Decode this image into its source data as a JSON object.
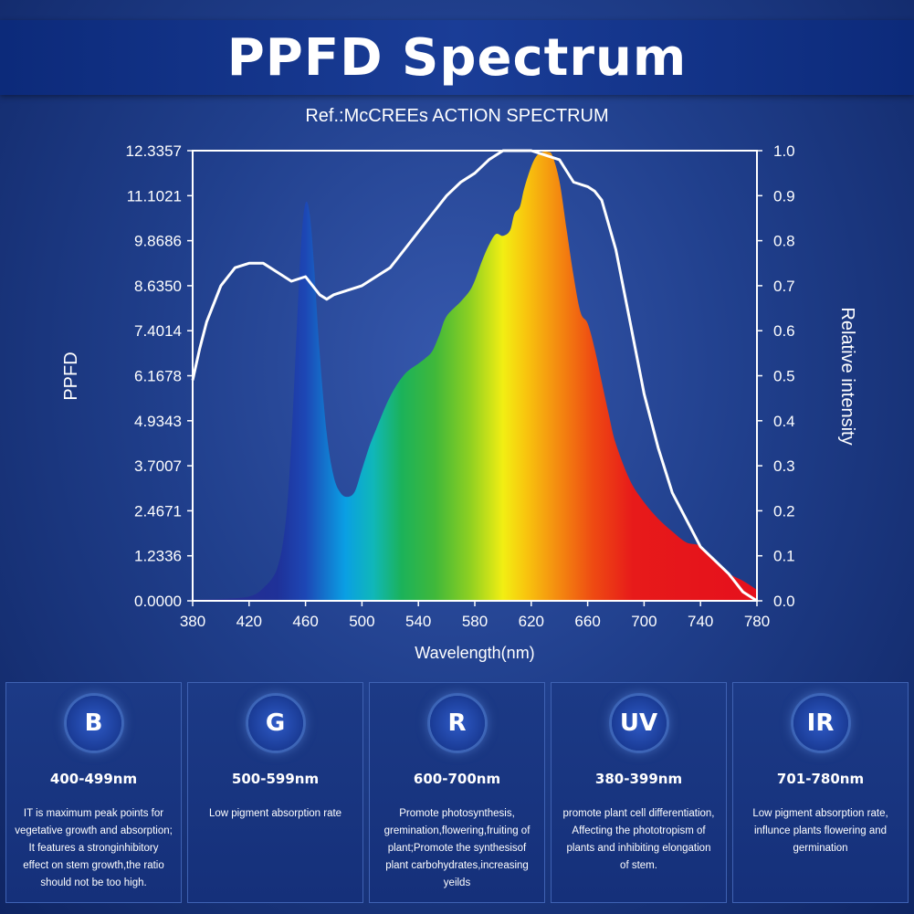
{
  "header": {
    "title": "PPFD Spectrum",
    "subtitle": "Ref.:McCREEs ACTION SPECTRUM"
  },
  "chart_data": {
    "type": "area",
    "xlabel": "Wavelength(nm)",
    "ylabel": "PPFD",
    "y2label": "Relative intensity",
    "xlim": [
      380,
      780
    ],
    "ylim": [
      0,
      12.3357
    ],
    "y2lim": [
      0,
      1.0
    ],
    "x_ticks": [
      "380",
      "420",
      "460",
      "500",
      "540",
      "580",
      "620",
      "660",
      "700",
      "740",
      "780"
    ],
    "y_ticks": [
      "0.0000",
      "1.2336",
      "2.4671",
      "3.7007",
      "4.9343",
      "6.1678",
      "7.4014",
      "8.6350",
      "9.8686",
      "11.1021",
      "12.3357"
    ],
    "y2_ticks": [
      "0.0",
      "0.1",
      "0.2",
      "0.3",
      "0.4",
      "0.5",
      "0.6",
      "0.7",
      "0.8",
      "0.9",
      "1.0"
    ],
    "grid": false,
    "series": [
      {
        "axis": "left",
        "fill": "spectrum",
        "x": [
          380,
          400,
          420,
          430,
          440,
          446,
          450,
          454,
          457,
          460,
          463,
          466,
          470,
          475,
          480,
          485,
          490,
          495,
          500,
          505,
          510,
          520,
          530,
          540,
          545,
          550,
          555,
          560,
          570,
          578,
          585,
          590,
          595,
          600,
          605,
          608,
          612,
          615,
          620,
          624,
          628,
          632,
          635,
          640,
          645,
          650,
          655,
          660,
          665,
          670,
          675,
          680,
          690,
          700,
          710,
          720,
          730,
          740,
          750,
          760,
          770,
          780
        ],
        "values": [
          0.03,
          0.05,
          0.12,
          0.35,
          0.9,
          2.2,
          4.4,
          7.6,
          9.9,
          10.9,
          10.6,
          9.2,
          6.8,
          4.6,
          3.4,
          2.95,
          2.85,
          3.0,
          3.6,
          4.2,
          4.7,
          5.6,
          6.2,
          6.5,
          6.65,
          6.85,
          7.3,
          7.8,
          8.2,
          8.6,
          9.3,
          9.75,
          10.05,
          10.0,
          10.15,
          10.6,
          10.8,
          11.3,
          11.9,
          12.2,
          12.3,
          12.3,
          12.2,
          11.5,
          10.2,
          8.9,
          7.9,
          7.6,
          6.9,
          6.0,
          5.1,
          4.3,
          3.3,
          2.7,
          2.25,
          1.9,
          1.6,
          1.5,
          1.1,
          0.75,
          0.55,
          0.3
        ]
      },
      {
        "axis": "right",
        "color": "#ffffff",
        "x": [
          380,
          385,
          390,
          400,
          410,
          420,
          430,
          440,
          450,
          460,
          470,
          475,
          480,
          490,
          500,
          510,
          520,
          530,
          540,
          550,
          560,
          570,
          580,
          590,
          600,
          610,
          620,
          630,
          640,
          650,
          660,
          665,
          670,
          680,
          690,
          700,
          710,
          720,
          730,
          740,
          750,
          760,
          770,
          780
        ],
        "values": [
          0.49,
          0.56,
          0.62,
          0.7,
          0.74,
          0.75,
          0.75,
          0.73,
          0.71,
          0.72,
          0.68,
          0.67,
          0.68,
          0.69,
          0.7,
          0.72,
          0.74,
          0.78,
          0.82,
          0.86,
          0.9,
          0.93,
          0.95,
          0.98,
          1.0,
          1.0,
          1.0,
          0.99,
          0.98,
          0.93,
          0.92,
          0.91,
          0.89,
          0.78,
          0.62,
          0.46,
          0.34,
          0.24,
          0.18,
          0.12,
          0.09,
          0.06,
          0.02,
          0.0
        ]
      }
    ]
  },
  "panels": [
    {
      "badge": "B",
      "range": "400-499nm",
      "lines": [
        "IT is maximum peak points for",
        "vegetative growth and absorption;",
        "It features a stronginhibitory",
        "effect on stem growth,the ratio",
        "should not be too high."
      ]
    },
    {
      "badge": "G",
      "range": "500-599nm",
      "lines": [
        "Low pigment absorption rate"
      ]
    },
    {
      "badge": "R",
      "range": "600-700nm",
      "lines": [
        "Promote photosynthesis,",
        "gremination,flowering,fruiting of",
        "plant;Promote the synthesisof",
        "plant carbohydrates,increasing",
        "yeilds"
      ]
    },
    {
      "badge": "UV",
      "range": "380-399nm",
      "lines": [
        "promote plant cell differentiation,",
        "Affecting the phototropism of",
        "plants and inhibiting elongation",
        "of stem."
      ]
    },
    {
      "badge": "IR",
      "range": "701-780nm",
      "lines": [
        "Low pigment absorption rate,",
        "influnce plants flowering and",
        "germination"
      ]
    }
  ]
}
